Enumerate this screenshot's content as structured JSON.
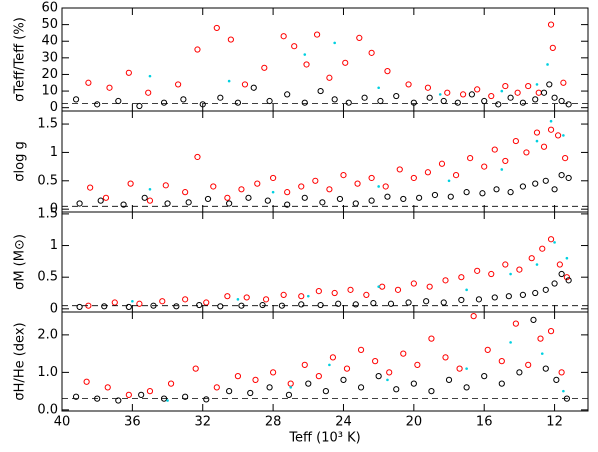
{
  "chart_data": [
    {
      "type": "scatter",
      "ylabel": "σTeff/Teff (%)",
      "xlim": [
        40,
        10.1
      ],
      "xticks": [
        40,
        36,
        32,
        28,
        24,
        20,
        16,
        12
      ],
      "ylim": [
        -2,
        60
      ],
      "yticks": [
        0,
        10,
        20,
        30,
        40,
        50,
        60
      ],
      "hline": 2.5,
      "series": [
        {
          "color": "#ff0000",
          "marker": "open",
          "x": [
            38.5,
            37.3,
            36.2,
            35.1,
            33.4,
            32.3,
            31.2,
            30.4,
            29.6,
            28.5,
            27.4,
            26.8,
            26.1,
            25.5,
            24.8,
            23.9,
            23.1,
            22.4,
            21.5,
            20.3,
            19.2,
            18.1,
            17.2,
            16.4,
            15.6,
            14.8,
            14.1,
            13.5,
            12.9,
            12.2,
            12.1,
            11.5
          ],
          "y": [
            15,
            12,
            21,
            9,
            14,
            35,
            48,
            41,
            14,
            24,
            43,
            37,
            26,
            44,
            18,
            27,
            42,
            33,
            22,
            14,
            12,
            9,
            8,
            11,
            7,
            13,
            9,
            13,
            9,
            50,
            36,
            15
          ]
        },
        {
          "color": "#000000",
          "marker": "open",
          "x": [
            39.2,
            38,
            36.8,
            35.6,
            34.2,
            33.1,
            32,
            31,
            30,
            29.1,
            28.2,
            27.2,
            26.2,
            25.3,
            24.5,
            23.7,
            22.8,
            21.9,
            21,
            20,
            19.1,
            18.3,
            17.5,
            16.7,
            16,
            15.2,
            14.5,
            13.8,
            13.1,
            12.6,
            12.3,
            12,
            11.6,
            11.2
          ],
          "y": [
            5,
            2,
            4,
            1,
            3,
            5,
            2,
            6,
            3,
            12,
            4,
            8,
            3,
            10,
            5,
            3,
            6,
            4,
            7,
            3,
            6,
            4,
            3,
            8,
            4,
            2,
            6,
            3,
            5,
            9,
            14,
            6,
            4,
            2
          ]
        },
        {
          "color": "#00d0e0",
          "marker": "dot",
          "x": [
            35,
            30.5,
            26.2,
            24.5,
            22,
            18.5,
            15,
            13,
            12.4
          ],
          "y": [
            19,
            16,
            32,
            39,
            12,
            8,
            10,
            14,
            26
          ]
        }
      ]
    },
    {
      "type": "scatter",
      "ylabel": "σlog g",
      "xlim": [
        40,
        10.1
      ],
      "xticks": [
        40,
        36,
        32,
        28,
        24,
        20,
        16,
        12
      ],
      "ylim": [
        -0.05,
        1.73
      ],
      "yticks": [
        0,
        0.5,
        1,
        1.5
      ],
      "hline": 0.05,
      "series": [
        {
          "color": "#ff0000",
          "marker": "open",
          "x": [
            38.4,
            37.5,
            36.1,
            35,
            34.1,
            33,
            32.3,
            31.4,
            30.6,
            29.8,
            28.9,
            28,
            27.2,
            26.4,
            25.6,
            24.8,
            24,
            23.2,
            22.4,
            21.6,
            20.8,
            20,
            19.2,
            18.4,
            17.6,
            16.8,
            16,
            15.4,
            14.8,
            14.2,
            13.6,
            13,
            12.6,
            12.2,
            11.8,
            11.4
          ],
          "y": [
            0.38,
            0.2,
            0.45,
            0.15,
            0.42,
            0.3,
            0.92,
            0.4,
            0.2,
            0.35,
            0.45,
            0.55,
            0.3,
            0.4,
            0.5,
            0.35,
            0.6,
            0.45,
            0.55,
            0.4,
            0.7,
            0.55,
            0.65,
            0.8,
            0.6,
            0.9,
            0.75,
            1.05,
            0.85,
            1.2,
            1.0,
            1.35,
            1.1,
            1.4,
            1.3,
            0.9
          ]
        },
        {
          "color": "#000000",
          "marker": "open",
          "x": [
            39,
            37.8,
            36.5,
            35.3,
            34,
            32.8,
            31.7,
            30.5,
            29.4,
            28.3,
            27.2,
            26.2,
            25.2,
            24.2,
            23.3,
            22.4,
            21.5,
            20.6,
            19.7,
            18.8,
            17.9,
            17,
            16.1,
            15.3,
            14.5,
            13.8,
            13.1,
            12.5,
            12,
            11.6,
            11.2
          ],
          "y": [
            0.1,
            0.15,
            0.08,
            0.2,
            0.1,
            0.12,
            0.18,
            0.1,
            0.2,
            0.15,
            0.08,
            0.2,
            0.12,
            0.18,
            0.1,
            0.15,
            0.22,
            0.18,
            0.2,
            0.25,
            0.22,
            0.3,
            0.28,
            0.35,
            0.3,
            0.4,
            0.45,
            0.5,
            0.35,
            0.6,
            0.55
          ]
        },
        {
          "color": "#00d0e0",
          "marker": "dot",
          "x": [
            35,
            28,
            22,
            18,
            15,
            13,
            12.2,
            11.5
          ],
          "y": [
            0.35,
            0.3,
            0.4,
            0.5,
            0.7,
            1.2,
            1.55,
            1.3
          ]
        }
      ]
    },
    {
      "type": "scatter",
      "ylabel": "σM (M⊙)",
      "xlim": [
        40,
        10.1
      ],
      "xticks": [
        40,
        36,
        32,
        28,
        24,
        20,
        16,
        12
      ],
      "ylim": [
        -0.05,
        1.53
      ],
      "yticks": [
        0,
        0.5,
        1,
        1.5
      ],
      "hline": 0.05,
      "series": [
        {
          "color": "#ff0000",
          "marker": "open",
          "x": [
            38.5,
            37,
            35.6,
            34.3,
            33,
            31.8,
            30.6,
            29.5,
            28.4,
            27.4,
            26.4,
            25.4,
            24.5,
            23.6,
            22.7,
            21.8,
            20.9,
            20,
            19.1,
            18.2,
            17.3,
            16.4,
            15.6,
            14.8,
            14,
            13.3,
            12.7,
            12.2,
            11.7,
            11.3
          ],
          "y": [
            0.05,
            0.1,
            0.08,
            0.12,
            0.15,
            0.1,
            0.2,
            0.18,
            0.15,
            0.22,
            0.2,
            0.28,
            0.25,
            0.3,
            0.22,
            0.35,
            0.3,
            0.4,
            0.35,
            0.45,
            0.5,
            0.6,
            0.55,
            0.7,
            0.62,
            0.8,
            0.95,
            1.1,
            0.7,
            0.5
          ]
        },
        {
          "color": "#000000",
          "marker": "open",
          "x": [
            39,
            37.6,
            36.2,
            34.8,
            33.5,
            32.2,
            31,
            29.8,
            28.6,
            27.5,
            26.4,
            25.3,
            24.3,
            23.3,
            22.3,
            21.3,
            20.3,
            19.3,
            18.3,
            17.3,
            16.3,
            15.4,
            14.6,
            13.8,
            13.1,
            12.5,
            12,
            11.6,
            11.2
          ],
          "y": [
            0.03,
            0.04,
            0.03,
            0.05,
            0.04,
            0.06,
            0.04,
            0.05,
            0.06,
            0.05,
            0.07,
            0.06,
            0.08,
            0.07,
            0.09,
            0.08,
            0.1,
            0.12,
            0.1,
            0.14,
            0.15,
            0.18,
            0.2,
            0.22,
            0.25,
            0.3,
            0.4,
            0.55,
            0.45
          ]
        },
        {
          "color": "#00d0e0",
          "marker": "dot",
          "x": [
            36,
            30,
            26,
            22,
            17,
            14.5,
            13,
            12,
            11.3
          ],
          "y": [
            0.12,
            0.15,
            0.2,
            0.35,
            0.3,
            0.55,
            0.7,
            1.05,
            0.8
          ]
        }
      ]
    },
    {
      "type": "scatter",
      "ylabel": "σH/He (dex)",
      "xlabel": "Teff (10³ K)",
      "xlim": [
        40,
        10.1
      ],
      "xticks": [
        40,
        36,
        32,
        28,
        24,
        20,
        16,
        12
      ],
      "ylim": [
        -0.03,
        2.61
      ],
      "yticks": [
        {
          "value": 0,
          "label": "0.0"
        },
        {
          "value": 1,
          "label": "1.0"
        },
        {
          "value": 2,
          "label": "2.0"
        }
      ],
      "hline": 0.3,
      "series": [
        {
          "color": "#ff0000",
          "marker": "open",
          "x": [
            38.6,
            37.4,
            36.2,
            35,
            33.8,
            32.4,
            31.2,
            30,
            29,
            28,
            27,
            26.2,
            25.4,
            24.6,
            23.8,
            23,
            22.2,
            21.4,
            20.6,
            19.8,
            19,
            18.2,
            17.4,
            16.6,
            15.8,
            15,
            14.2,
            13.5,
            12.8,
            12.2,
            11.6
          ],
          "y": [
            0.75,
            0.6,
            0.4,
            0.5,
            0.7,
            1.1,
            0.6,
            0.9,
            0.8,
            1.0,
            0.7,
            1.2,
            0.9,
            1.4,
            1.1,
            1.6,
            1.3,
            1.0,
            1.5,
            1.2,
            1.9,
            1.4,
            1.1,
            2.5,
            1.6,
            1.3,
            2.3,
            1.2,
            1.9,
            2.1,
            1.0
          ]
        },
        {
          "color": "#000000",
          "marker": "open",
          "x": [
            39.2,
            38,
            36.8,
            35.5,
            34.2,
            33,
            31.8,
            30.5,
            29.3,
            28.2,
            27.1,
            26,
            25,
            24,
            23,
            22,
            21,
            20,
            19,
            18,
            17,
            16,
            15,
            14,
            13.2,
            12.5,
            11.9,
            11.3
          ],
          "y": [
            0.35,
            0.3,
            0.25,
            0.4,
            0.3,
            0.35,
            0.28,
            0.5,
            0.45,
            0.6,
            0.4,
            0.7,
            0.5,
            0.8,
            0.6,
            0.9,
            0.55,
            0.7,
            0.5,
            0.8,
            0.6,
            0.9,
            0.7,
            1.0,
            2.4,
            1.1,
            0.8,
            0.3
          ]
        },
        {
          "color": "#00d0e0",
          "marker": "dot",
          "x": [
            34,
            27,
            24.8,
            21.5,
            17,
            14.5,
            12.7,
            11.5
          ],
          "y": [
            0.25,
            0.6,
            1.2,
            0.8,
            1.1,
            1.8,
            1.5,
            0.5
          ]
        }
      ]
    }
  ]
}
